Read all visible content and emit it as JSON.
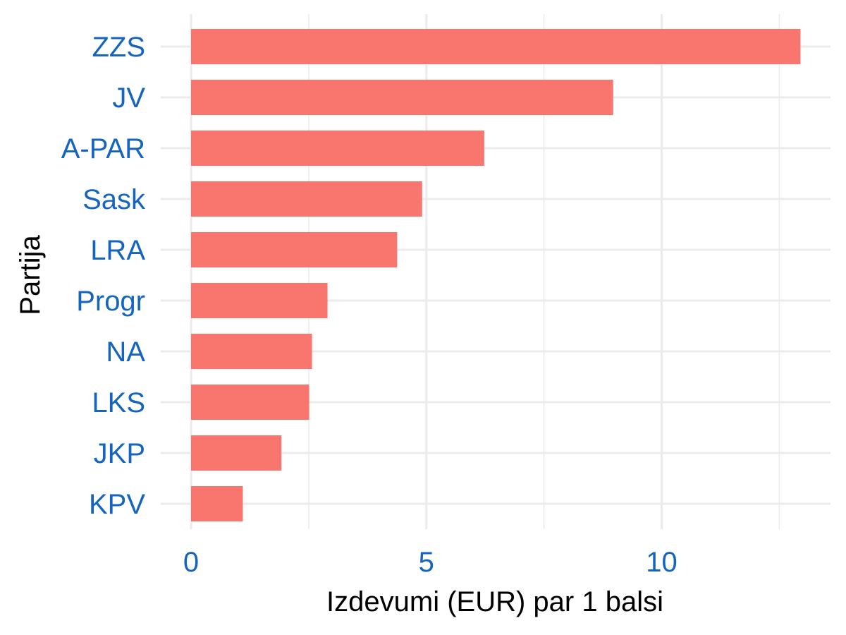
{
  "chart_data": {
    "type": "bar",
    "orientation": "horizontal",
    "categories": [
      "ZZS",
      "JV",
      "A-PAR",
      "Sask",
      "LRA",
      "Progr",
      "NA",
      "LKS",
      "JKP",
      "KPV"
    ],
    "values": [
      12.95,
      8.97,
      6.23,
      4.91,
      4.38,
      2.9,
      2.57,
      2.51,
      1.92,
      1.1
    ],
    "xlabel": "Izdevumi (EUR) par 1 balsi",
    "ylabel": "Partija",
    "xlim": [
      0,
      13.5
    ],
    "x_ticks": [
      "0",
      "5",
      "10"
    ],
    "grid": true,
    "legend": "none",
    "colors": {
      "bar": "#F8766D",
      "tick_label": "#1565C0",
      "grid": "#EBEBEB",
      "axis_title": "#000000"
    }
  }
}
